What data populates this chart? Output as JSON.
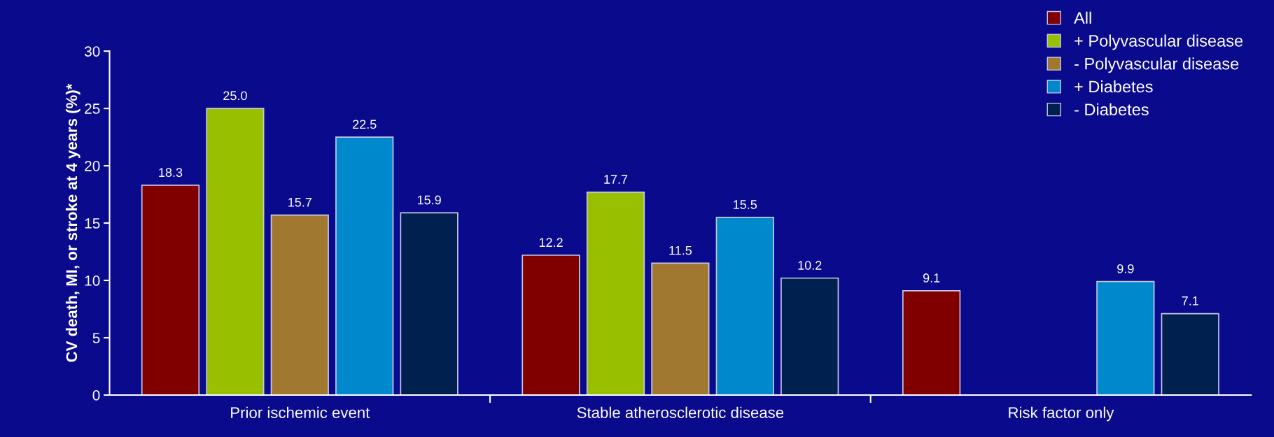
{
  "chart_data": {
    "type": "bar",
    "ylabel": "CV death, MI, or stroke at 4 years (%)*",
    "categories": [
      "Prior ischemic event",
      "Stable atherosclerotic disease",
      "Risk factor only"
    ],
    "series": [
      {
        "name": "All",
        "color": "#800000",
        "values": [
          18.3,
          12.2,
          9.1
        ],
        "value_labels": [
          "18.3",
          "12.2",
          "9.1"
        ]
      },
      {
        "name": "+ Polyvascular disease",
        "color": "#99c000",
        "values": [
          25.0,
          17.7,
          null
        ],
        "value_labels": [
          "25.0",
          "17.7",
          null
        ]
      },
      {
        "name": "- Polyvascular disease",
        "color": "#a07830",
        "values": [
          15.7,
          11.5,
          null
        ],
        "value_labels": [
          "15.7",
          "11.5",
          null
        ]
      },
      {
        "name": "+ Diabetes",
        "color": "#0088cc",
        "values": [
          22.5,
          15.5,
          9.9
        ],
        "value_labels": [
          "22.5",
          "15.5",
          "9.9"
        ]
      },
      {
        "name": "- Diabetes",
        "color": "#002050",
        "values": [
          15.9,
          10.2,
          7.1
        ],
        "value_labels": [
          "15.9",
          "10.2",
          "7.1"
        ]
      }
    ],
    "ylim": [
      0,
      30
    ],
    "yticks": [
      0,
      5,
      10,
      15,
      20,
      25,
      30
    ],
    "grid": false,
    "legend": "top right"
  }
}
